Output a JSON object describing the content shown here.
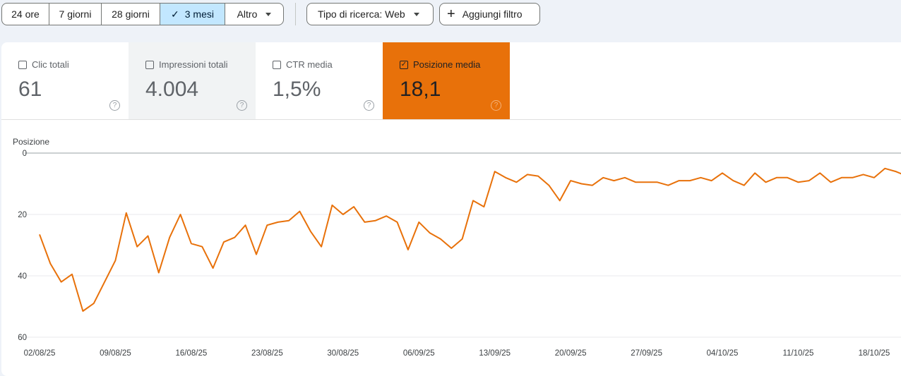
{
  "filters": {
    "periods": [
      "24 ore",
      "7 giorni",
      "28 giorni",
      "3 mesi",
      "Altro"
    ],
    "selected_period": "3 mesi",
    "search_type": "Tipo di ricerca: Web",
    "add_filter": "Aggiungi filtro"
  },
  "metrics": [
    {
      "label": "Clic totali",
      "value": "61",
      "checked": false
    },
    {
      "label": "Impressioni totali",
      "value": "4.004",
      "checked": false
    },
    {
      "label": "CTR media",
      "value": "1,5%",
      "checked": false
    },
    {
      "label": "Posizione media",
      "value": "18,1",
      "checked": true
    }
  ],
  "colors": {
    "series": "#e8710a",
    "selected_period_bg": "#c2e7ff"
  },
  "chart_data": {
    "type": "line",
    "ylabel": "Posizione",
    "y_inverted": true,
    "ylim": [
      0,
      60
    ],
    "yticks": [
      0,
      20,
      40,
      60
    ],
    "xtick_labels": [
      "02/08/25",
      "09/08/25",
      "16/08/25",
      "23/08/25",
      "30/08/25",
      "06/09/25",
      "13/09/25",
      "20/09/25",
      "27/09/25",
      "04/10/25",
      "11/10/25",
      "18/10/25"
    ],
    "grid": true,
    "series": [
      {
        "values": [
          26.5,
          36,
          42,
          39.5,
          51.5,
          49,
          42,
          35,
          19.5,
          30.5,
          27,
          39,
          27.5,
          20,
          29.5,
          30.5,
          37.5,
          29,
          27.5,
          23.5,
          33,
          23.5,
          22.5,
          22,
          19,
          25.5,
          30.5,
          17,
          20,
          17.5,
          22.5,
          22,
          20.5,
          22.5,
          31.5,
          22.5,
          26,
          28,
          31,
          28,
          15.5,
          17.5,
          6,
          8,
          9.5,
          7,
          7.5,
          10.5,
          15.5,
          9,
          10,
          10.5,
          8,
          9,
          8,
          9.5,
          9.5,
          9.5,
          10.5,
          9,
          9,
          8,
          9,
          6.5,
          9,
          10.5,
          6.5,
          9.5,
          8,
          8,
          9.5,
          9,
          6.5,
          9.5,
          8,
          8,
          7,
          8,
          5,
          6,
          7.5
        ]
      }
    ]
  }
}
